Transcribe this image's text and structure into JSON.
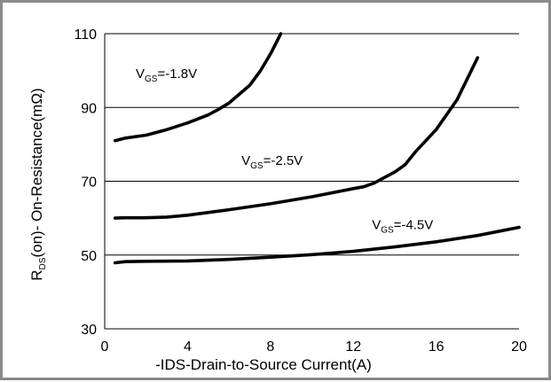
{
  "chart_data": {
    "type": "line",
    "xlabel": "-IDS-Drain-to-Source  Current(A)",
    "ylabel": {
      "prefix": "R",
      "sub": "DS",
      "rest": "(on)- On-Resistance(mΩ)"
    },
    "xlim": [
      0,
      20
    ],
    "ylim": [
      30,
      110
    ],
    "xticks": [
      0,
      4,
      8,
      12,
      16,
      20
    ],
    "yticks": [
      30,
      50,
      70,
      90,
      110
    ],
    "grid": "horizontal",
    "legend": "none",
    "series": [
      {
        "label": {
          "main": "V",
          "sub": "GS",
          "value": "=-1.8V"
        },
        "x": [
          0.5,
          1,
          1.5,
          2,
          3,
          4,
          5,
          5.5,
          6,
          7,
          7.5,
          8,
          8.5
        ],
        "y": [
          81,
          81.7,
          82.1,
          82.5,
          84,
          85.8,
          88,
          89.5,
          91.2,
          96,
          99.8,
          104.5,
          110
        ]
      },
      {
        "label": {
          "main": "V",
          "sub": "GS",
          "value": "=-2.5V"
        },
        "x": [
          0.5,
          1,
          2,
          3,
          4,
          6,
          8,
          10,
          12,
          12.5,
          13,
          14,
          14.5,
          15,
          16,
          17,
          18
        ],
        "y": [
          60,
          60.1,
          60.1,
          60.3,
          60.8,
          62.3,
          63.9,
          65.8,
          68,
          68.5,
          69.5,
          72.5,
          74.5,
          78,
          84,
          92,
          103.5
        ]
      },
      {
        "label": {
          "main": "V",
          "sub": "GS",
          "value": "=-4.5V"
        },
        "x": [
          0.5,
          1,
          2,
          4,
          6,
          8,
          10,
          12,
          14,
          16,
          18,
          20
        ],
        "y": [
          47.9,
          48.2,
          48.3,
          48.4,
          48.8,
          49.4,
          50.1,
          51,
          52.2,
          53.6,
          55.3,
          57.5
        ]
      }
    ]
  }
}
